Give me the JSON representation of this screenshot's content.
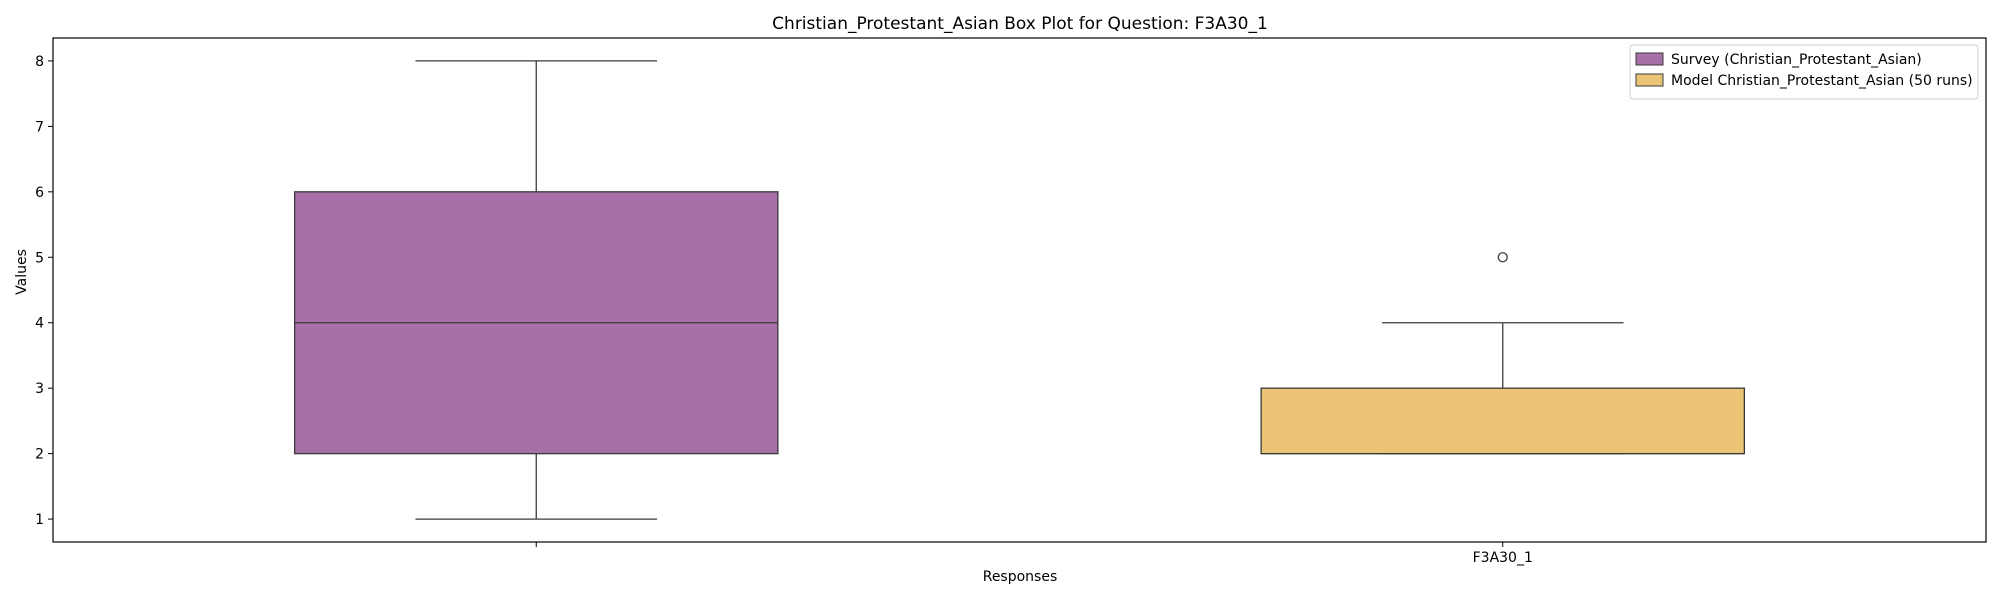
{
  "chart_data": {
    "type": "box",
    "title": "Christian_Protestant_Asian Box Plot for Question: F3A30_1",
    "xlabel": "Responses",
    "ylabel": "Values",
    "ylim": [
      0.65,
      8.35
    ],
    "yticks": [
      1,
      2,
      3,
      4,
      5,
      6,
      7,
      8
    ],
    "categories": [
      "",
      "F3A30_1"
    ],
    "legend_position": "top-right",
    "series": [
      {
        "name": "Survey (Christian_Protestant_Asian)",
        "color": "#a870a8",
        "category_index": 0,
        "whisker_low": 1,
        "q1": 2,
        "median": 4,
        "q3": 6,
        "whisker_high": 8,
        "outliers": []
      },
      {
        "name": "Model Christian_Protestant_Asian (50 runs)",
        "color": "#ebc476",
        "category_index": 1,
        "whisker_low": 2,
        "q1": 2,
        "median": 2,
        "q3": 3,
        "whisker_high": 4,
        "outliers": [
          5
        ]
      }
    ]
  }
}
